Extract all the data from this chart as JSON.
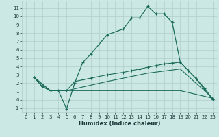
{
  "xlabel": "Humidex (Indice chaleur)",
  "bg_color": "#cce8e4",
  "grid_color": "#b0ceca",
  "line_color": "#1a6b5a",
  "xlim": [
    -0.5,
    23.5
  ],
  "ylim": [
    -1.5,
    11.8
  ],
  "xticks": [
    0,
    1,
    2,
    3,
    4,
    5,
    6,
    7,
    8,
    9,
    10,
    11,
    12,
    13,
    14,
    15,
    16,
    17,
    18,
    19,
    20,
    21,
    22,
    23
  ],
  "yticks": [
    -1,
    0,
    1,
    2,
    3,
    4,
    5,
    6,
    7,
    8,
    9,
    10,
    11
  ],
  "line1_x": [
    1,
    2,
    3,
    4,
    5,
    6,
    7,
    8,
    10,
    12,
    13,
    14,
    15,
    16,
    17,
    18,
    19,
    20,
    21,
    22,
    23
  ],
  "line1_y": [
    2.7,
    1.6,
    1.1,
    1.1,
    -1.1,
    2.0,
    4.5,
    5.5,
    7.8,
    8.5,
    9.8,
    9.8,
    11.2,
    10.3,
    10.3,
    9.3,
    4.5,
    3.5,
    2.5,
    1.2,
    0.1
  ],
  "line2_x": [
    1,
    2,
    3,
    5,
    6,
    7,
    8,
    10,
    12,
    13,
    14,
    15,
    16,
    17,
    18,
    19,
    20,
    21,
    22,
    23
  ],
  "line2_y": [
    2.7,
    1.6,
    1.1,
    1.1,
    2.2,
    2.4,
    2.6,
    3.0,
    3.3,
    3.5,
    3.7,
    3.9,
    4.1,
    4.3,
    4.4,
    4.5,
    3.5,
    2.5,
    1.4,
    0.1
  ],
  "line3_x": [
    1,
    3,
    5,
    10,
    15,
    19,
    23
  ],
  "line3_y": [
    2.7,
    1.1,
    1.1,
    2.2,
    3.2,
    3.7,
    0.2
  ],
  "line4_x": [
    1,
    3,
    5,
    10,
    15,
    19,
    23
  ],
  "line4_y": [
    2.7,
    1.1,
    1.1,
    1.1,
    1.1,
    1.1,
    0.2
  ]
}
